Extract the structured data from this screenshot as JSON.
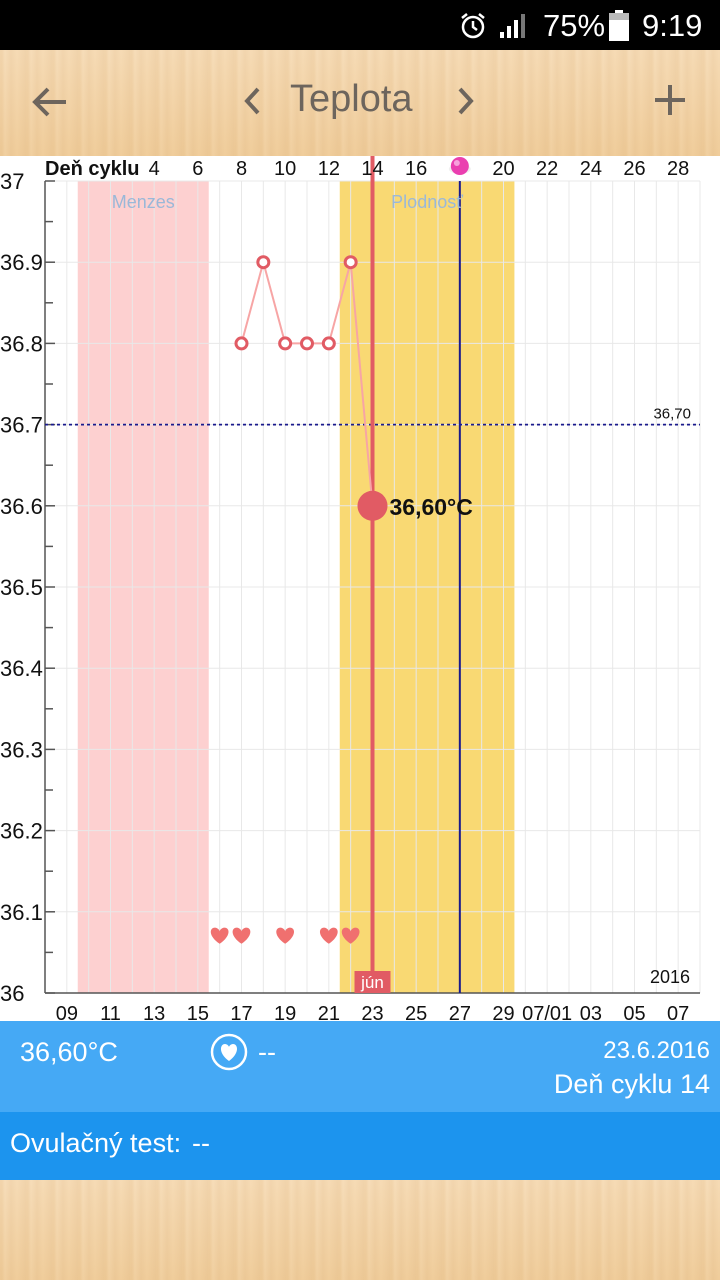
{
  "status_bar": {
    "alarm_icon": "alarm-clock-icon",
    "signal_icon": "cell-signal-icon",
    "battery_percent": "75%",
    "battery_icon": "battery-icon",
    "time": "9:19"
  },
  "app_bar": {
    "back_icon": "arrow-left-icon",
    "prev_icon": "chevron-left-icon",
    "title": "Teplota",
    "next_icon": "chevron-right-icon",
    "add_icon": "plus-icon"
  },
  "chart_data": {
    "type": "line",
    "cycle_axis_label": "Deň cyklu",
    "cycle_day_ticks": [
      "4",
      "6",
      "8",
      "10",
      "12",
      "14",
      "16",
      "",
      "20",
      "22",
      "24",
      "26",
      "28"
    ],
    "ovulation_marker_icon": "pink-dot-icon",
    "y_ticks": [
      "36",
      "36.1",
      "36.2",
      "36.3",
      "36.4",
      "36.5",
      "36.6",
      "36.7",
      "36.8",
      "36.9",
      "37"
    ],
    "ylim": [
      36.0,
      37.0
    ],
    "date_ticks": [
      "09",
      "11",
      "13",
      "15",
      "17",
      "19",
      "21",
      "23",
      "25",
      "27",
      "29",
      "07/01",
      "03",
      "05",
      "07"
    ],
    "month_label": "jún",
    "year_label": "2016",
    "x_range_cycle_days": [
      -1,
      29
    ],
    "regions": [
      {
        "label": "Menzes",
        "from_cycle_day": 1,
        "to_cycle_day": 6,
        "color": "#fdd0d0"
      },
      {
        "label": "Plodnosť",
        "from_cycle_day": 13,
        "to_cycle_day": 20,
        "color": "#f9d973"
      }
    ],
    "threshold": {
      "value": 36.7,
      "label": "36,70",
      "color": "#1a1a8c"
    },
    "ovulation_line_cycle_day": 18,
    "current_line_cycle_day": 14,
    "series": [
      {
        "points": [
          {
            "cycle_day": 8,
            "temp": 36.8
          },
          {
            "cycle_day": 9,
            "temp": 36.9
          },
          {
            "cycle_day": 10,
            "temp": 36.8
          },
          {
            "cycle_day": 11,
            "temp": 36.8
          },
          {
            "cycle_day": 12,
            "temp": 36.8
          },
          {
            "cycle_day": 13,
            "temp": 36.9
          },
          {
            "cycle_day": 14,
            "temp": 36.6
          }
        ]
      }
    ],
    "current_point_label": "36,60°C",
    "intercourse_days": [
      7,
      8,
      10,
      12,
      13
    ]
  },
  "info": {
    "temperature": "36,60°C",
    "heart_icon": "heart-circle-icon",
    "intercourse_value": "--",
    "date": "23.6.2016",
    "cycle_day_text": "Deň cyklu 14"
  },
  "ovulation_test": {
    "label": "Ovulačný test:",
    "value": "--"
  },
  "colors": {
    "info_bar": "#45a9f5",
    "test_bar": "#1c94ee",
    "accent_red": "#e15b64",
    "line_pink": "#f7a5a5"
  }
}
